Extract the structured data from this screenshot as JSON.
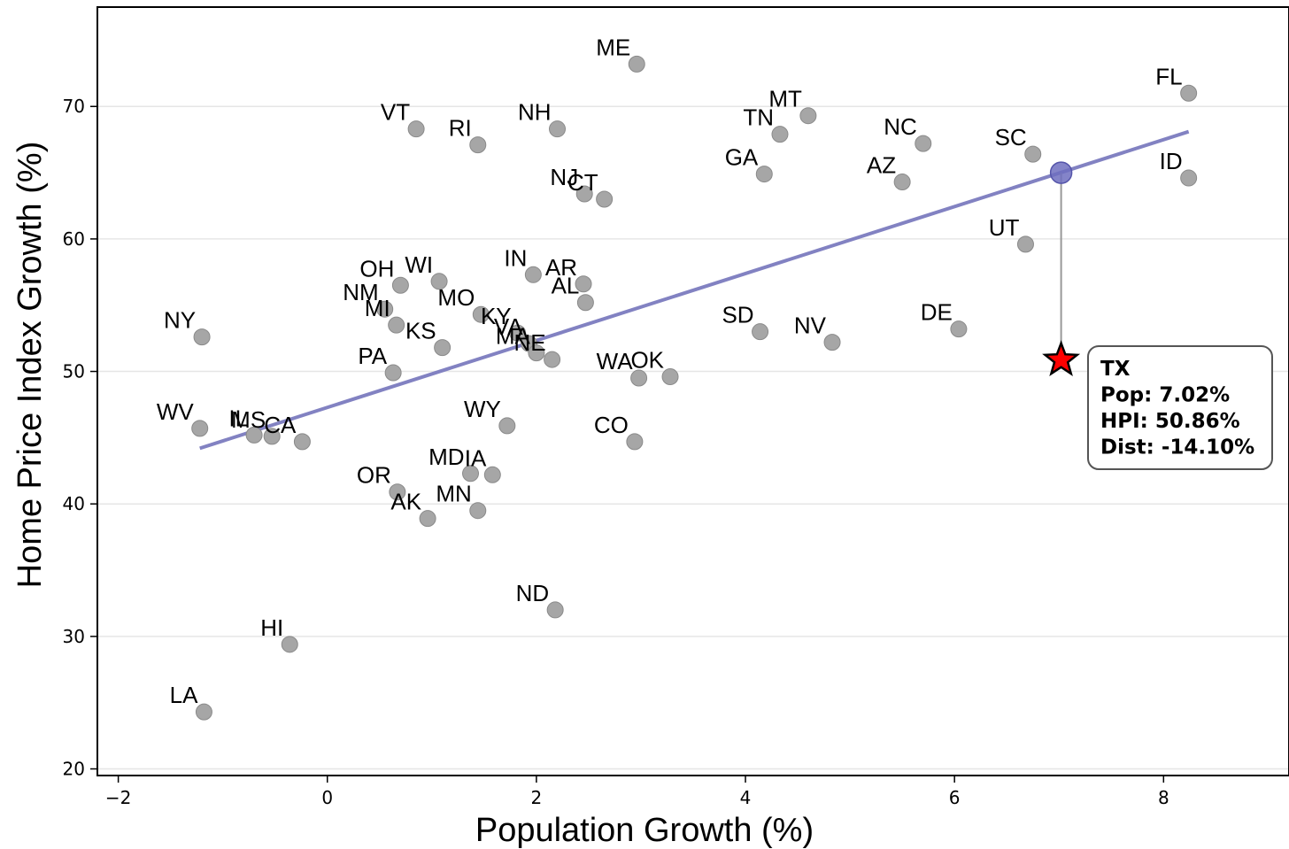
{
  "chart_data": {
    "type": "scatter",
    "xlabel": "Population Growth (%)",
    "ylabel": "Home Price Index Growth (%)",
    "xlim": [
      -2.2,
      9.2
    ],
    "ylim": [
      19.5,
      77.5
    ],
    "xticks": [
      -2,
      0,
      2,
      4,
      6,
      8
    ],
    "yticks": [
      20,
      30,
      40,
      50,
      60,
      70
    ],
    "grid": "horizontal",
    "colors": {
      "points": "#a6a6a6",
      "trend": "#7b7bbf",
      "highlight_fill": "#ff0000",
      "fitted_point": "#6f6fbf",
      "connector": "#999999"
    },
    "points": [
      {
        "label": "ME",
        "x": 2.96,
        "y": 73.2
      },
      {
        "label": "FL",
        "x": 8.24,
        "y": 71.0
      },
      {
        "label": "MT",
        "x": 4.6,
        "y": 69.3
      },
      {
        "label": "TN",
        "x": 4.33,
        "y": 67.9
      },
      {
        "label": "VT",
        "x": 0.85,
        "y": 68.3
      },
      {
        "label": "NH",
        "x": 2.2,
        "y": 68.3
      },
      {
        "label": "RI",
        "x": 1.44,
        "y": 67.1
      },
      {
        "label": "NC",
        "x": 5.7,
        "y": 67.2
      },
      {
        "label": "SC",
        "x": 6.75,
        "y": 66.4
      },
      {
        "label": "GA",
        "x": 4.18,
        "y": 64.9
      },
      {
        "label": "AZ",
        "x": 5.5,
        "y": 64.3
      },
      {
        "label": "ID",
        "x": 8.24,
        "y": 64.6
      },
      {
        "label": "NJ",
        "x": 2.46,
        "y": 63.4
      },
      {
        "label": "CT",
        "x": 2.65,
        "y": 63.0
      },
      {
        "label": "UT",
        "x": 6.68,
        "y": 59.6
      },
      {
        "label": "IN",
        "x": 1.97,
        "y": 57.3
      },
      {
        "label": "AR",
        "x": 2.45,
        "y": 56.6
      },
      {
        "label": "AL",
        "x": 2.47,
        "y": 55.2
      },
      {
        "label": "OH",
        "x": 0.7,
        "y": 56.5
      },
      {
        "label": "WI",
        "x": 1.07,
        "y": 56.8
      },
      {
        "label": "NM",
        "x": 0.55,
        "y": 54.7
      },
      {
        "label": "MI",
        "x": 0.66,
        "y": 53.5
      },
      {
        "label": "MO",
        "x": 1.47,
        "y": 54.3
      },
      {
        "label": "KY",
        "x": 1.82,
        "y": 52.9
      },
      {
        "label": "VA",
        "x": 1.93,
        "y": 52.1
      },
      {
        "label": "MA",
        "x": 2.0,
        "y": 51.4
      },
      {
        "label": "NE",
        "x": 2.15,
        "y": 50.9
      },
      {
        "label": "KS",
        "x": 1.1,
        "y": 51.8
      },
      {
        "label": "NY",
        "x": -1.2,
        "y": 52.6
      },
      {
        "label": "PA",
        "x": 0.63,
        "y": 49.9
      },
      {
        "label": "SD",
        "x": 4.14,
        "y": 53.0
      },
      {
        "label": "NV",
        "x": 4.83,
        "y": 52.2
      },
      {
        "label": "DE",
        "x": 6.04,
        "y": 53.2
      },
      {
        "label": "WA",
        "x": 2.98,
        "y": 49.5
      },
      {
        "label": "OK",
        "x": 3.28,
        "y": 49.6
      },
      {
        "label": "WV",
        "x": -1.22,
        "y": 45.7
      },
      {
        "label": "IL",
        "x": -0.7,
        "y": 45.2
      },
      {
        "label": "MS",
        "x": -0.53,
        "y": 45.1
      },
      {
        "label": "CA",
        "x": -0.24,
        "y": 44.7
      },
      {
        "label": "WY",
        "x": 1.72,
        "y": 45.9
      },
      {
        "label": "CO",
        "x": 2.94,
        "y": 44.7
      },
      {
        "label": "MD",
        "x": 1.37,
        "y": 42.3
      },
      {
        "label": "IA",
        "x": 1.58,
        "y": 42.2
      },
      {
        "label": "OR",
        "x": 0.67,
        "y": 40.9
      },
      {
        "label": "MN",
        "x": 1.44,
        "y": 39.5
      },
      {
        "label": "AK",
        "x": 0.96,
        "y": 38.9
      },
      {
        "label": "ND",
        "x": 2.18,
        "y": 32.0
      },
      {
        "label": "HI",
        "x": -0.36,
        "y": 29.4
      },
      {
        "label": "LA",
        "x": -1.18,
        "y": 24.3
      }
    ],
    "trend_line": {
      "x": [
        -1.22,
        8.24
      ],
      "y": [
        44.2,
        68.1
      ]
    },
    "highlight": {
      "label": "TX",
      "x": 7.02,
      "y": 50.86,
      "fitted_y": 65.0,
      "annotation": {
        "title": "TX",
        "line1": "Pop: 7.02%",
        "line2": "HPI: 50.86%",
        "line3": "Dist: -14.10%"
      }
    }
  }
}
